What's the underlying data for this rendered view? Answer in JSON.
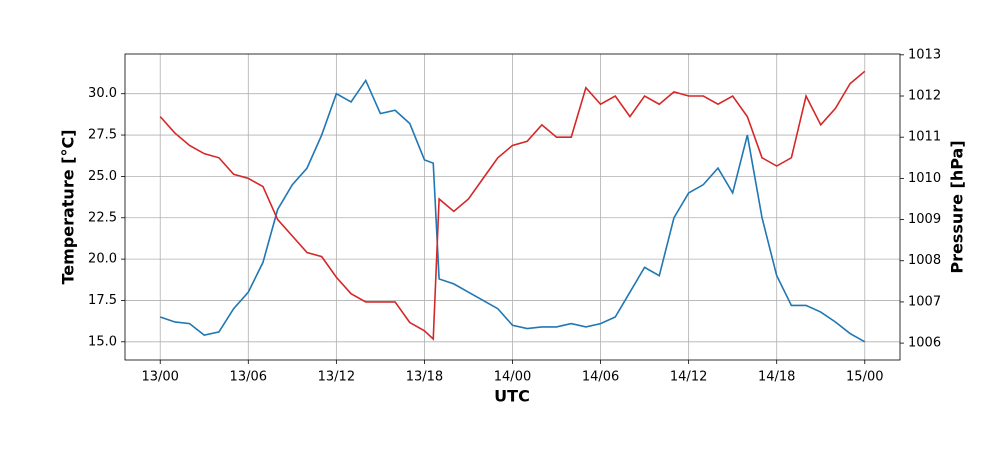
{
  "chart_data": {
    "type": "line",
    "xlabel": "UTC",
    "ylabel": "Temperature [°C]",
    "y2label": "Pressure [hPa]",
    "x": [
      0,
      1,
      2,
      3,
      4,
      5,
      6,
      7,
      8,
      9,
      10,
      11,
      12,
      13,
      14,
      15,
      16,
      17,
      18,
      18.6,
      19,
      20,
      21,
      22,
      23,
      24,
      25,
      26,
      27,
      28,
      29,
      30,
      31,
      32,
      33,
      34,
      35,
      36,
      37,
      38,
      39,
      40,
      41,
      42,
      43,
      44,
      45,
      46,
      47,
      48
    ],
    "xlim": [
      -2.4,
      50.4
    ],
    "xticks": [
      {
        "value": 0,
        "label": "13/00"
      },
      {
        "value": 6,
        "label": "13/06"
      },
      {
        "value": 12,
        "label": "13/12"
      },
      {
        "value": 18,
        "label": "13/18"
      },
      {
        "value": 24,
        "label": "14/00"
      },
      {
        "value": 30,
        "label": "14/06"
      },
      {
        "value": 36,
        "label": "14/12"
      },
      {
        "value": 42,
        "label": "14/18"
      },
      {
        "value": 48,
        "label": "15/00"
      }
    ],
    "ylim": [
      13.9,
      32.4
    ],
    "yticks": [
      {
        "value": 15,
        "label": "15.0"
      },
      17.5,
      {
        "value": 20,
        "label": "20.0"
      },
      22.5,
      {
        "value": 25,
        "label": "25.0"
      },
      27.5,
      {
        "value": 30,
        "label": "30.0"
      }
    ],
    "y2lim": [
      1005.59,
      1013.02
    ],
    "y2ticks": [
      1006,
      1007,
      1008,
      1009,
      1010,
      1011,
      1012,
      1013
    ],
    "grid": true,
    "series": [
      {
        "color": "#1f77b4",
        "values": [
          16.5,
          16.2,
          16.1,
          15.4,
          15.6,
          17.0,
          18.0,
          19.8,
          23.0,
          24.5,
          25.5,
          27.5,
          30.0,
          29.5,
          30.8,
          28.8,
          29.0,
          28.2,
          26.0,
          25.8,
          18.8,
          18.5,
          18.0,
          17.5,
          17.0,
          16.0,
          15.8,
          15.9,
          15.9,
          16.1,
          15.9,
          16.1,
          16.5,
          18.0,
          19.5,
          19.0,
          22.5,
          24.0,
          24.5,
          25.5,
          24.0,
          27.5,
          22.5,
          19.0,
          17.2,
          17.2,
          16.8,
          16.2,
          15.5,
          15.0
        ]
      },
      {
        "color": "#d62728",
        "axis": "y2",
        "values": [
          1011.5,
          1011.1,
          1010.8,
          1010.6,
          1010.5,
          1010.1,
          1010.0,
          1009.8,
          1009.0,
          1008.6,
          1008.2,
          1008.1,
          1007.6,
          1007.2,
          1007.0,
          1007.0,
          1007.0,
          1006.5,
          1006.3,
          1006.1,
          1009.5,
          1009.2,
          1009.5,
          1010.0,
          1010.5,
          1010.8,
          1010.9,
          1011.3,
          1011.0,
          1011.0,
          1012.2,
          1011.8,
          1012.0,
          1011.5,
          1012.0,
          1011.8,
          1012.1,
          1012.0,
          1012.0,
          1011.8,
          1012.0,
          1011.5,
          1010.5,
          1010.3,
          1010.5,
          1012.0,
          1011.3,
          1011.7,
          1012.3,
          1012.6
        ]
      }
    ]
  }
}
